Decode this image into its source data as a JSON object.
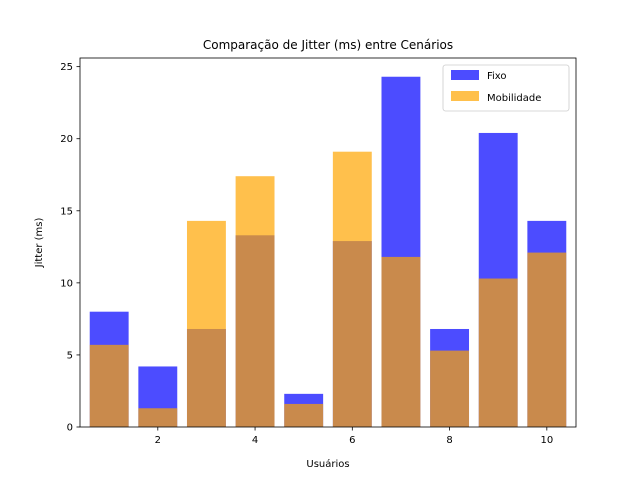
{
  "chart_data": {
    "type": "bar",
    "title": "Comparação de Jitter (ms) entre Cenários",
    "xlabel": "Usuários",
    "ylabel": "Jitter (ms)",
    "x": [
      1,
      2,
      3,
      4,
      5,
      6,
      7,
      8,
      9,
      10
    ],
    "xlim": [
      0.4,
      10.6
    ],
    "ylim": [
      0,
      25.6
    ],
    "x_ticks": [
      2,
      4,
      6,
      8,
      10
    ],
    "y_ticks": [
      0,
      5,
      10,
      15,
      20,
      25
    ],
    "grid": false,
    "legend_position": "upper right",
    "series": [
      {
        "name": "Fixo",
        "color": "#0000ff",
        "opacity": 0.7,
        "values": [
          8.0,
          4.2,
          6.8,
          13.3,
          2.3,
          12.9,
          24.3,
          6.8,
          20.4,
          14.3
        ]
      },
      {
        "name": "Mobilidade",
        "color": "#ffa500",
        "opacity": 0.7,
        "values": [
          5.7,
          1.3,
          14.3,
          17.4,
          1.6,
          19.1,
          11.8,
          5.3,
          10.3,
          12.1
        ]
      }
    ]
  }
}
